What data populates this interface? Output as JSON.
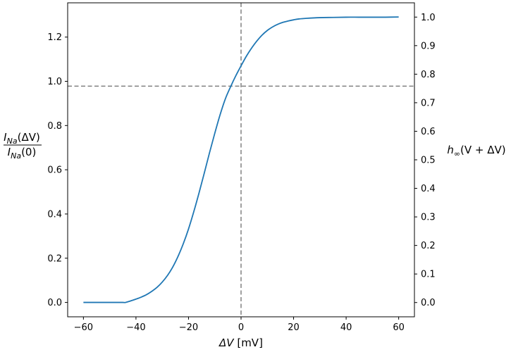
{
  "chart_data": {
    "type": "line",
    "xlabel": {
      "symbol": "ΔV",
      "unit": " [mV]"
    },
    "ylabel_left": {
      "numerator": {
        "base": "I",
        "sub": "Na",
        "arg": "(ΔV)"
      },
      "denominator": {
        "base": "I",
        "sub": "Na",
        "arg": "(0)"
      }
    },
    "ylabel_right": {
      "base": "h",
      "sub": "∞",
      "arg": "(V + ΔV)"
    },
    "xlim": [
      -66,
      66
    ],
    "ylim_left": [
      -0.065,
      1.355
    ],
    "ylim_right": [
      -0.05,
      1.05
    ],
    "xticks": [
      "−60",
      "−40",
      "−20",
      "0",
      "20",
      "40",
      "60"
    ],
    "xtick_values": [
      -60,
      -40,
      -20,
      0,
      20,
      40,
      60
    ],
    "yticks_left": [
      "0.0",
      "0.2",
      "0.4",
      "0.6",
      "0.8",
      "1.0",
      "1.2"
    ],
    "ytick_values_left": [
      0,
      0.2,
      0.4,
      0.6,
      0.8,
      1.0,
      1.2
    ],
    "yticks_right": [
      "0.0",
      "0.1",
      "0.2",
      "0.3",
      "0.4",
      "0.5",
      "0.6",
      "0.7",
      "0.8",
      "0.9",
      "1.0"
    ],
    "ytick_values_right": [
      0,
      0.1,
      0.2,
      0.3,
      0.4,
      0.5,
      0.6,
      0.7,
      0.8,
      0.9,
      1.0
    ],
    "series": [
      {
        "color": "#1f77b4",
        "x": [
          -60,
          -55,
          -50,
          -45,
          -44,
          -42,
          -40,
          -38,
          -36,
          -34,
          -32,
          -30,
          -28,
          -26,
          -24,
          -22,
          -20,
          -18,
          -16,
          -14,
          -12,
          -10,
          -8,
          -6,
          -4,
          -2,
          0,
          2,
          4,
          6,
          8,
          10,
          12,
          14,
          16,
          18,
          20,
          22,
          25,
          30,
          35,
          40,
          45,
          50,
          55,
          60
        ],
        "y": [
          0,
          0,
          0,
          0,
          0,
          0.007,
          0.015,
          0.024,
          0.035,
          0.05,
          0.068,
          0.092,
          0.122,
          0.16,
          0.208,
          0.265,
          0.332,
          0.41,
          0.495,
          0.585,
          0.677,
          0.765,
          0.848,
          0.92,
          0.975,
          1.025,
          1.07,
          1.113,
          1.15,
          1.182,
          1.209,
          1.23,
          1.246,
          1.258,
          1.267,
          1.273,
          1.278,
          1.282,
          1.285,
          1.288,
          1.289,
          1.29,
          1.29,
          1.29,
          1.29,
          1.291
        ]
      }
    ],
    "reference_lines": [
      {
        "orientation": "horizontal",
        "axis": "left",
        "value": 0.978,
        "style": "dashed",
        "color": "#808080"
      },
      {
        "orientation": "vertical",
        "value": 0,
        "style": "dashed",
        "color": "#808080"
      }
    ],
    "grid": false,
    "legend": "none"
  }
}
